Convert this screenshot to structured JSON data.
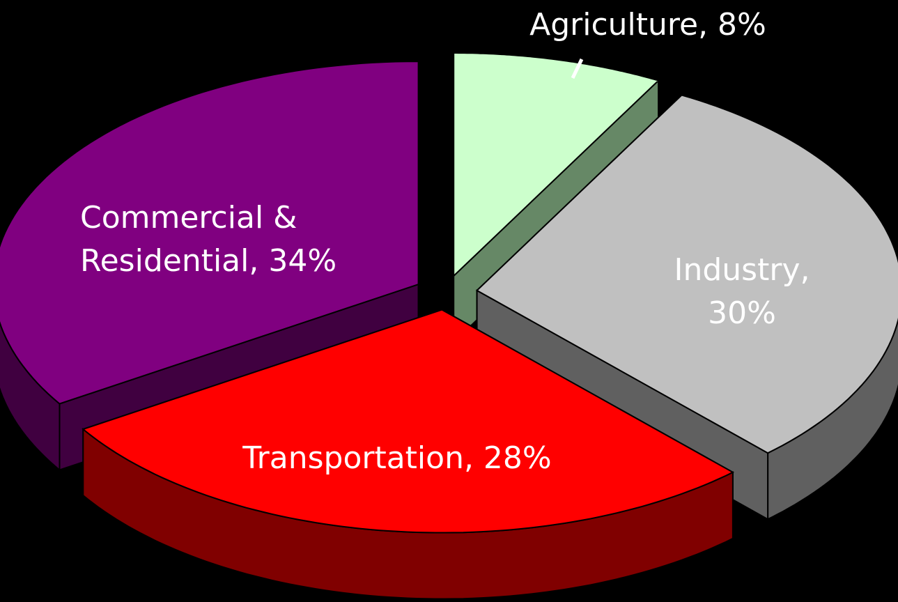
{
  "chart_data": {
    "type": "pie3d",
    "values": [
      8,
      30,
      28,
      34
    ],
    "value_labels": [
      "Agriculture, 8%",
      "Industry,\n30%",
      "Transportation, 28%",
      "Commercial &\nResidential, 34%"
    ],
    "colors": [
      "#ccffcc",
      "#c0c0c0",
      "#ff0000",
      "#800080"
    ],
    "side_colors": [
      "#668866",
      "#606060",
      "#800000",
      "#400040"
    ]
  }
}
